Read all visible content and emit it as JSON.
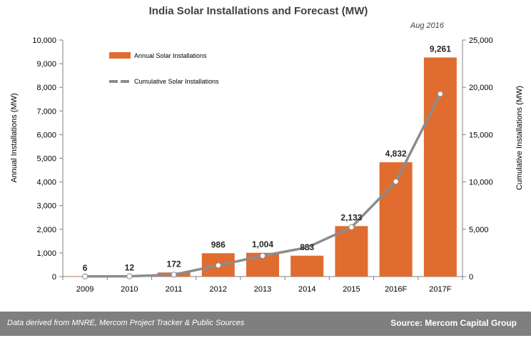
{
  "chart_data": {
    "type": "bar",
    "title": "India Solar Installations and Forecast (MW)",
    "subtitle": "Aug 2016",
    "categories": [
      "2009",
      "2010",
      "2011",
      "2012",
      "2013",
      "2014",
      "2015",
      "2016F",
      "2017F"
    ],
    "series": [
      {
        "name": "Annual Solar Installations",
        "type": "bar",
        "axis": "left",
        "color": "#e06c30",
        "values": [
          6,
          12,
          172,
          986,
          1004,
          883,
          2133,
          4832,
          9261
        ],
        "labels": [
          "6",
          "12",
          "172",
          "986",
          "1,004",
          "883",
          "2,133",
          "4,832",
          "9,261"
        ]
      },
      {
        "name": "Cumulative Solar Installations",
        "type": "line",
        "axis": "right",
        "color": "#8c8c8c",
        "values": [
          15,
          27,
          199,
          1185,
          2189,
          3072,
          5205,
          10037,
          19298
        ]
      }
    ],
    "ylabel": "Annual Installations (MW)",
    "y2label": "Cumulative Installations (MW)",
    "ylim": [
      0,
      10000
    ],
    "y2lim": [
      0,
      25000
    ],
    "yticks": [
      "0",
      "1,000",
      "2,000",
      "3,000",
      "4,000",
      "5,000",
      "6,000",
      "7,000",
      "8,000",
      "9,000",
      "10,000"
    ],
    "y2ticks": [
      "0",
      "5,000",
      "10,000",
      "15,000",
      "20,000",
      "25,000"
    ],
    "legend_position": "top-left"
  },
  "footer": {
    "source_note": "Data derived from MNRE, Mercom Project Tracker & Public Sources",
    "source": "Source: Mercom Capital Group"
  }
}
